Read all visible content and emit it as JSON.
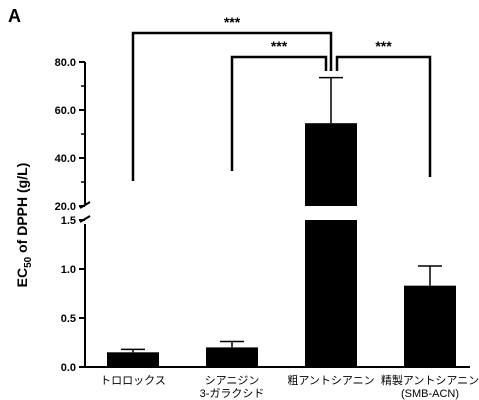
{
  "panel_label": "A",
  "chart_data": {
    "type": "bar",
    "ylabel_prefix": "EC",
    "ylabel_sub": "50",
    "ylabel_suffix": " of DPPH  (g/L)",
    "categories": [
      {
        "line1": "トロロックス",
        "line2": ""
      },
      {
        "line1": "シアニジン",
        "line2": "3-ガラクシド"
      },
      {
        "line1": "粗アントシアニン",
        "line2": ""
      },
      {
        "line1": "精製アントシアニン",
        "line2": "(SMB-ACN)"
      }
    ],
    "values": [
      0.15,
      0.2,
      54.5,
      0.83
    ],
    "errors": [
      0.03,
      0.06,
      19.0,
      0.2
    ],
    "y_axis_broken": true,
    "lower_segment": {
      "range": [
        0,
        1.5
      ],
      "ticks": [
        "0.0",
        "0.5",
        "1.0",
        "1.5"
      ]
    },
    "upper_segment": {
      "range": [
        20,
        80
      ],
      "ticks": [
        "20.0",
        "40.0",
        "60.0",
        "80.0"
      ]
    },
    "significance": [
      {
        "from": 0,
        "to": 2,
        "label": "***"
      },
      {
        "from": 1,
        "to": 2,
        "label": "***"
      },
      {
        "from": 2,
        "to": 3,
        "label": "***"
      }
    ],
    "bar_color": "#000000"
  }
}
